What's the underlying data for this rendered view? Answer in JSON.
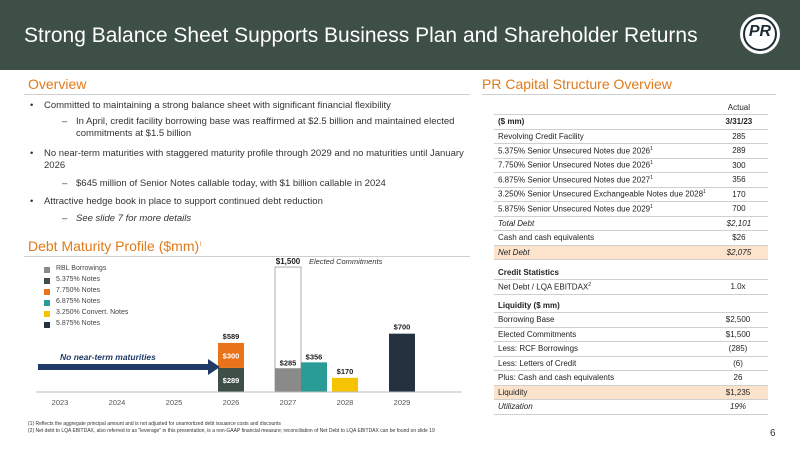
{
  "header": {
    "title": "Strong Balance Sheet Supports Business Plan and Shareholder Returns",
    "logo_text": "PR",
    "bg_color": "#3d4f46"
  },
  "overview": {
    "title": "Overview",
    "b1": "Committed to maintaining a strong balance sheet with significant financial flexibility",
    "b1_sub": "In April, credit facility borrowing base was reaffirmed at $2.5 billion and maintained elected commitments at $1.5 billion",
    "b2": "No near-term maturities with staggered maturity profile through 2029 and no maturities until January 2026",
    "b2_sub": "$645 million of Senior Notes callable today, with $1 billion callable in 2024",
    "b3": "Attractive hedge book in place to support continued debt reduction",
    "b3_sub": "See slide 7 for more details",
    "bullet_glyph": "•",
    "dash_glyph": "–"
  },
  "debt_chart": {
    "title": "Debt Maturity Profile ($mm)",
    "title_sup": "1",
    "annotation": "No near-term maturities",
    "elected_label": "Elected Commitments",
    "legend": [
      {
        "label": "RBL Borrowings",
        "color": "#8a8a8a"
      },
      {
        "label": "5.375% Notes",
        "color": "#3d4f46"
      },
      {
        "label": "7.750% Notes",
        "color": "#e8731a"
      },
      {
        "label": "6.875% Notes",
        "color": "#2a9c96"
      },
      {
        "label": "3.250% Convert. Notes",
        "color": "#f5c300"
      },
      {
        "label": "5.875% Notes",
        "color": "#24323f"
      }
    ]
  },
  "chart_data": {
    "type": "bar",
    "categories": [
      "2023",
      "2024",
      "2025",
      "2026",
      "2027",
      "2028",
      "2029"
    ],
    "series": [
      {
        "name": "RBL Borrowings",
        "values": [
          0,
          0,
          0,
          0,
          285,
          0,
          0
        ]
      },
      {
        "name": "5.375% Notes",
        "values": [
          0,
          0,
          0,
          289,
          0,
          0,
          0
        ]
      },
      {
        "name": "7.750% Notes",
        "values": [
          0,
          0,
          0,
          300,
          0,
          0,
          0
        ]
      },
      {
        "name": "6.875% Notes",
        "values": [
          0,
          0,
          0,
          0,
          356,
          0,
          0
        ]
      },
      {
        "name": "3.250% Convert. Notes",
        "values": [
          0,
          0,
          0,
          0,
          0,
          170,
          0
        ]
      },
      {
        "name": "5.875% Notes",
        "values": [
          0,
          0,
          0,
          0,
          0,
          0,
          700
        ]
      }
    ],
    "elected_commitments": {
      "category": "2027",
      "value": 1500,
      "label": "$1,500"
    },
    "totals": [
      {
        "category": "2026",
        "label": "$589"
      },
      {
        "category": "2029",
        "label": "$700"
      },
      {
        "category": "2028",
        "label": "$170"
      }
    ],
    "segment_labels": [
      {
        "category": "2026",
        "series": "5.375% Notes",
        "label": "$289"
      },
      {
        "category": "2026",
        "series": "7.750% Notes",
        "label": "$300"
      },
      {
        "category": "2027",
        "series": "RBL Borrowings",
        "label": "$285"
      },
      {
        "category": "2027",
        "series": "6.875% Notes",
        "label": "$356"
      }
    ],
    "ylim": [
      0,
      1500
    ]
  },
  "cap_structure": {
    "title": "PR Capital Structure Overview",
    "col_header": "Actual",
    "unit_label": "($ mm)",
    "date": "3/31/23",
    "rows": [
      {
        "label": "Revolving Credit Facility",
        "sup": "",
        "value": "285"
      },
      {
        "label": "5.375% Senior Unsecured Notes due 2026",
        "sup": "1",
        "value": "289"
      },
      {
        "label": "7.750% Senior Unsecured Notes due 2026",
        "sup": "1",
        "value": "300"
      },
      {
        "label": "6.875% Senior Unsecured Notes due 2027",
        "sup": "1",
        "value": "356"
      },
      {
        "label": "3.250% Senior Unsecured Exchangeable Notes due 2028",
        "sup": "1",
        "value": "170"
      },
      {
        "label": "5.875% Senior Unsecured Notes due 2029",
        "sup": "1",
        "value": "700"
      }
    ],
    "total_debt": {
      "label": "Total Debt",
      "value": "$2,101"
    },
    "cash": {
      "label": "Cash and cash equivalents",
      "value": "$26"
    },
    "net_debt": {
      "label": "Net Debt",
      "value": "$2,075"
    },
    "credit_stats_title": "Credit Statistics",
    "leverage": {
      "label": "Net Debt / LQA EBITDAX",
      "sup": "2",
      "value": "1.0x"
    },
    "liquidity_title": "Liquidity ($ mm)",
    "liquidity_rows": [
      {
        "label": "Borrowing Base",
        "value": "$2,500"
      },
      {
        "label": "Elected Commitments",
        "value": "$1,500"
      },
      {
        "label": "Less: RCF Borrowings",
        "value": "(285)"
      },
      {
        "label": "Less: Letters of Credit",
        "value": "(6)"
      },
      {
        "label": "Plus: Cash and cash equivalents",
        "value": "26"
      }
    ],
    "liquidity_total": {
      "label": "Liquidity",
      "value": "$1,235"
    },
    "utilization": {
      "label": "Utilization",
      "value": "19%"
    }
  },
  "footnotes": {
    "f1": "(1)   Reflects the aggregate principal amount and is not adjusted for unamortized debt issuance costs and discounts",
    "f2": "(2)   Net debt to LQA EBITDAX, also referred to as \"leverage\" in this presentation, is a non-GAAP financial measure; reconciliation of Net Debt to LQA EBITDAX can be found on slide 19"
  },
  "page_number": "6"
}
